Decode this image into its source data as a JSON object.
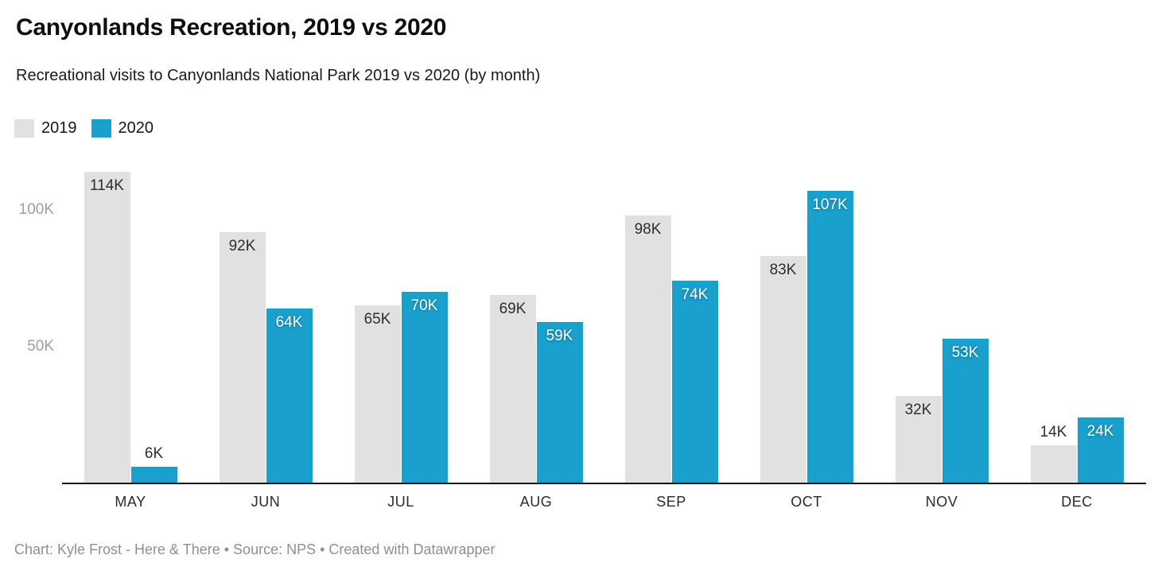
{
  "header": {
    "title": "Canyonlands Recreation, 2019 vs 2020",
    "subtitle": "Recreational visits to Canyonlands National Park 2019 vs 2020 (by month)"
  },
  "legend": {
    "items": [
      {
        "label": "2019",
        "color": "#e1e1e1"
      },
      {
        "label": "2020",
        "color": "#1aa0cc"
      }
    ]
  },
  "chart_data": {
    "type": "bar",
    "title": "Canyonlands Recreation, 2019 vs 2020",
    "subtitle": "Recreational visits to Canyonlands National Park 2019 vs 2020 (by month)",
    "categories": [
      "MAY",
      "JUN",
      "JUL",
      "AUG",
      "SEP",
      "OCT",
      "NOV",
      "DEC"
    ],
    "series": [
      {
        "name": "2019",
        "color": "#e1e1e1",
        "values": [
          114,
          92,
          65,
          69,
          98,
          83,
          32,
          14
        ],
        "labels": [
          "114K",
          "92K",
          "65K",
          "69K",
          "98K",
          "83K",
          "32K",
          "14K"
        ],
        "inside_label_color": "#2e2e2e"
      },
      {
        "name": "2020",
        "color": "#1aa0cc",
        "values": [
          6,
          64,
          70,
          59,
          74,
          107,
          53,
          24
        ],
        "labels": [
          "6K",
          "64K",
          "70K",
          "59K",
          "74K",
          "107K",
          "53K",
          "24K"
        ],
        "inside_label_color": "#ffffff"
      }
    ],
    "unit": "K",
    "y_axis": {
      "ticks": [
        {
          "value": 50,
          "label": "50K"
        },
        {
          "value": 100,
          "label": "100K"
        }
      ],
      "range": [
        0,
        115.7
      ]
    },
    "grid": false,
    "legend_position": "top-left",
    "axis_line_color": "#161616",
    "outside_label_color": "#2e2e2e"
  },
  "footer": {
    "text": "Chart: Kyle Frost - Here & There • Source: NPS • Created with Datawrapper"
  }
}
